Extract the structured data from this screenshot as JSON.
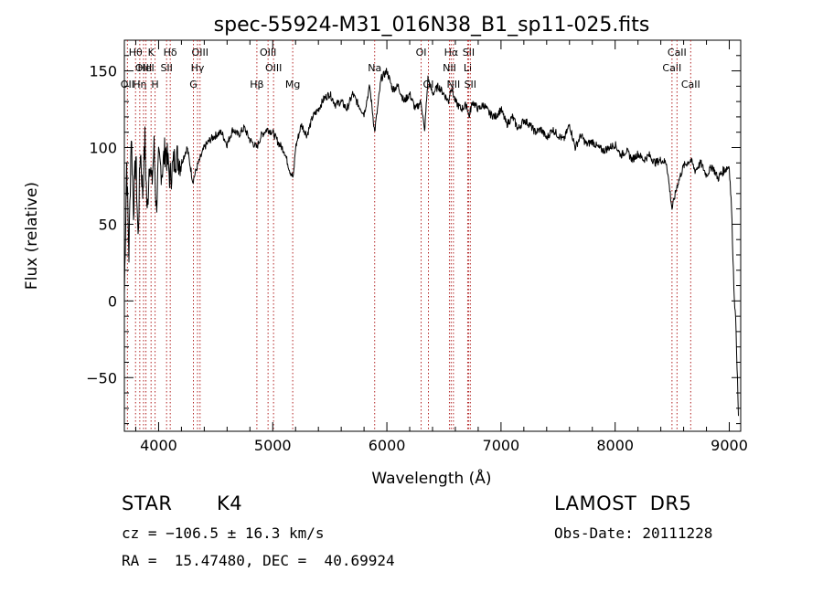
{
  "chart_data": {
    "type": "line",
    "title": "spec-55924-M31_016N38_B1_sp11-025.fits",
    "xlabel": "Wavelength (Å)",
    "ylabel": "Flux (relative)",
    "xlim": [
      3700,
      9100
    ],
    "ylim": [
      -85,
      170
    ],
    "x_ticks": [
      4000,
      5000,
      6000,
      7000,
      8000,
      9000
    ],
    "y_ticks": [
      -50,
      0,
      50,
      100,
      150
    ],
    "grid": false,
    "series": [
      {
        "color": "#000000",
        "x": [
          3700,
          3720,
          3740,
          3760,
          3780,
          3800,
          3820,
          3840,
          3860,
          3880,
          3900,
          3920,
          3940,
          3960,
          3980,
          4000,
          4030,
          4060,
          4100,
          4150,
          4200,
          4250,
          4300,
          4340,
          4400,
          4450,
          4500,
          4550,
          4600,
          4650,
          4700,
          4750,
          4800,
          4860,
          4900,
          4950,
          5000,
          5050,
          5100,
          5150,
          5180,
          5200,
          5250,
          5300,
          5350,
          5400,
          5450,
          5500,
          5550,
          5600,
          5650,
          5700,
          5750,
          5800,
          5850,
          5893,
          5950,
          6000,
          6050,
          6100,
          6150,
          6200,
          6250,
          6300,
          6330,
          6360,
          6400,
          6450,
          6500,
          6540,
          6563,
          6600,
          6650,
          6700,
          6720,
          6750,
          6800,
          6850,
          6900,
          6950,
          7000,
          7050,
          7100,
          7150,
          7200,
          7250,
          7300,
          7350,
          7400,
          7450,
          7500,
          7550,
          7600,
          7650,
          7700,
          7750,
          7800,
          7850,
          7900,
          7950,
          8000,
          8050,
          8100,
          8150,
          8200,
          8250,
          8300,
          8350,
          8400,
          8450,
          8498,
          8542,
          8600,
          8662,
          8700,
          8750,
          8800,
          8850,
          8900,
          8950,
          9000,
          9020,
          9040,
          9060,
          9080
        ],
        "y": [
          5,
          90,
          30,
          110,
          60,
          95,
          40,
          100,
          70,
          105,
          55,
          95,
          75,
          100,
          60,
          90,
          85,
          100,
          80,
          95,
          90,
          100,
          78,
          88,
          100,
          105,
          108,
          110,
          102,
          112,
          108,
          113,
          105,
          100,
          108,
          112,
          110,
          103,
          98,
          85,
          80,
          100,
          115,
          108,
          120,
          125,
          132,
          135,
          128,
          130,
          125,
          135,
          128,
          122,
          140,
          110,
          145,
          150,
          138,
          140,
          130,
          135,
          125,
          130,
          110,
          145,
          135,
          140,
          135,
          130,
          140,
          130,
          125,
          128,
          120,
          130,
          125,
          128,
          122,
          120,
          125,
          115,
          120,
          112,
          118,
          115,
          110,
          112,
          106,
          112,
          108,
          105,
          115,
          100,
          108,
          102,
          104,
          100,
          98,
          100,
          102,
          95,
          98,
          92,
          96,
          92,
          95,
          90,
          92,
          90,
          60,
          75,
          88,
          92,
          85,
          90,
          82,
          88,
          80,
          85,
          88,
          60,
          10,
          -20,
          -75
        ],
        "plot_ymax": 165
      }
    ],
    "line_markers": [
      {
        "label": "OII",
        "x": 3727,
        "row": 2
      },
      {
        "label": "Hθ",
        "x": 3798,
        "row": 0
      },
      {
        "label": "Hη",
        "x": 3835,
        "row": 2
      },
      {
        "label": "OIII",
        "x": 3868,
        "row": 1
      },
      {
        "label": "K",
        "x": 3934,
        "row": 0
      },
      {
        "label": "HeI",
        "x": 3889,
        "row": 1
      },
      {
        "label": "H",
        "x": 3969,
        "row": 2
      },
      {
        "label": "SII",
        "x": 4070,
        "row": 1
      },
      {
        "label": "Hδ",
        "x": 4102,
        "row": 0
      },
      {
        "label": "OIII",
        "x": 4363,
        "row": 0
      },
      {
        "label": "Hγ",
        "x": 4341,
        "row": 1
      },
      {
        "label": "G",
        "x": 4305,
        "row": 2
      },
      {
        "label": "OIII",
        "x": 4959,
        "row": 0
      },
      {
        "label": "OIII",
        "x": 5007,
        "row": 1
      },
      {
        "label": "Hβ",
        "x": 4861,
        "row": 2
      },
      {
        "label": "Mg",
        "x": 5175,
        "row": 2
      },
      {
        "label": "Na",
        "x": 5893,
        "row": 1
      },
      {
        "label": "OI",
        "x": 6300,
        "row": 0
      },
      {
        "label": "OI",
        "x": 6364,
        "row": 2
      },
      {
        "label": "Hα",
        "x": 6563,
        "row": 0
      },
      {
        "label": "NII",
        "x": 6548,
        "row": 1
      },
      {
        "label": "NII",
        "x": 6583,
        "row": 2
      },
      {
        "label": "SII",
        "x": 6716,
        "row": 0
      },
      {
        "label": "Li",
        "x": 6708,
        "row": 1
      },
      {
        "label": "SII",
        "x": 6731,
        "row": 2
      },
      {
        "label": "CaII",
        "x": 8498,
        "row": 1
      },
      {
        "label": "CaII",
        "x": 8542,
        "row": 0
      },
      {
        "label": "CaII",
        "x": 8662,
        "row": 2
      }
    ],
    "marker_color": "#b22222"
  },
  "info": {
    "class": "STAR",
    "subclass": "K4",
    "survey": "LAMOST  DR5",
    "cz": "cz = −106.5 ± 16.3 km/s",
    "obs_date": "Obs-Date: 20111228",
    "radec": "RA =  15.47480, DEC =  40.69924"
  }
}
